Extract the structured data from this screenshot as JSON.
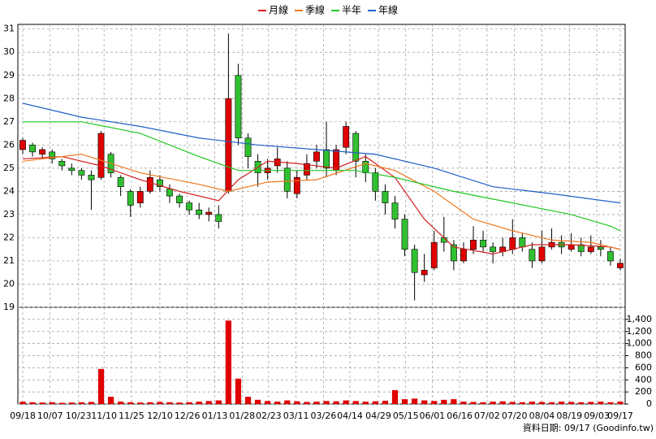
{
  "chart_data": {
    "type": "candlestick",
    "footer": "資料日期: 09/17 (Goodinfo.tw)",
    "xlim": [
      -0.5,
      61.5
    ],
    "xticks": [
      {
        "value": 0,
        "label": "09/18"
      },
      {
        "value": 2.8,
        "label": "10/07"
      },
      {
        "value": 5.7,
        "label": "10/23"
      },
      {
        "value": 8.3,
        "label": "11/10"
      },
      {
        "value": 11.1,
        "label": "11/25"
      },
      {
        "value": 14.0,
        "label": "12/10"
      },
      {
        "value": 16.8,
        "label": "12/26"
      },
      {
        "value": 19.6,
        "label": "01/13"
      },
      {
        "value": 22.4,
        "label": "01/28"
      },
      {
        "value": 25.1,
        "label": "02/23"
      },
      {
        "value": 27.9,
        "label": "03/11"
      },
      {
        "value": 30.7,
        "label": "03/26"
      },
      {
        "value": 33.4,
        "label": "04/14"
      },
      {
        "value": 36.3,
        "label": "04/29"
      },
      {
        "value": 39.1,
        "label": "05/15"
      },
      {
        "value": 41.8,
        "label": "06/01"
      },
      {
        "value": 44.6,
        "label": "06/16"
      },
      {
        "value": 47.4,
        "label": "07/02"
      },
      {
        "value": 50.2,
        "label": "07/20"
      },
      {
        "value": 53.0,
        "label": "08/04"
      },
      {
        "value": 55.8,
        "label": "08/19"
      },
      {
        "value": 58.6,
        "label": "09/03"
      },
      {
        "value": 61,
        "label": "09/17"
      }
    ],
    "ylim": [
      19,
      31.2
    ],
    "yticks": [
      19,
      20,
      21,
      22,
      23,
      24,
      25,
      26,
      27,
      28,
      29,
      30,
      31
    ],
    "y2lim": [
      0,
      1600
    ],
    "y2ticks": [
      0,
      {
        "value": 200,
        "label": "200"
      },
      {
        "value": 400,
        "label": "400"
      },
      {
        "value": 600,
        "label": "600"
      },
      {
        "value": 800,
        "label": "800"
      },
      {
        "value": 1000,
        "label": "1,000"
      },
      {
        "value": 1200,
        "label": "1,200"
      },
      {
        "value": 1400,
        "label": "1,400"
      }
    ],
    "grid": true,
    "up_color": "#e00000",
    "down_color": "#30c030",
    "volume_color": "#e00000",
    "open": [
      25.8,
      26.0,
      25.6,
      25.7,
      25.3,
      25.0,
      24.9,
      24.7,
      24.6,
      25.6,
      24.6,
      24.0,
      23.5,
      24.0,
      24.5,
      24.1,
      23.8,
      23.5,
      23.2,
      23.0,
      23.0,
      24.0,
      29.0,
      26.3,
      25.3,
      24.8,
      25.1,
      25.0,
      23.9,
      24.7,
      25.3,
      25.8,
      24.9,
      25.9,
      26.5,
      25.3,
      24.8,
      24.0,
      23.5,
      22.8,
      21.5,
      20.4,
      20.7,
      22.0,
      21.7,
      21.0,
      21.5,
      21.9,
      21.6,
      21.4,
      21.5,
      22.0,
      21.5,
      21.0,
      21.6,
      21.8,
      21.5,
      21.7,
      21.4,
      21.6,
      21.4,
      20.7
    ],
    "high": [
      26.3,
      26.1,
      25.9,
      25.8,
      25.4,
      25.2,
      25.0,
      24.9,
      26.6,
      25.7,
      24.7,
      24.1,
      24.2,
      24.9,
      24.7,
      24.3,
      23.9,
      23.6,
      23.5,
      23.3,
      23.4,
      30.8,
      29.5,
      26.5,
      25.6,
      25.4,
      25.9,
      25.3,
      24.9,
      25.6,
      26.0,
      27.0,
      26.0,
      27.0,
      26.6,
      25.6,
      25.0,
      24.3,
      23.8,
      23.0,
      21.7,
      21.3,
      22.3,
      22.9,
      21.9,
      21.8,
      22.5,
      22.3,
      21.8,
      22.0,
      22.8,
      22.2,
      21.8,
      22.3,
      22.4,
      22.1,
      22.2,
      22.0,
      22.1,
      21.9,
      21.6,
      21.1
    ],
    "low": [
      25.6,
      25.5,
      25.4,
      25.2,
      24.9,
      24.7,
      24.5,
      23.2,
      24.5,
      24.6,
      23.8,
      22.9,
      23.3,
      23.9,
      24.0,
      23.5,
      23.3,
      23.0,
      22.8,
      22.7,
      22.4,
      23.9,
      26.0,
      25.0,
      24.2,
      24.5,
      24.8,
      23.7,
      23.7,
      24.5,
      25.0,
      24.6,
      24.7,
      25.6,
      24.6,
      24.4,
      23.6,
      23.0,
      22.4,
      21.2,
      19.3,
      20.1,
      20.6,
      21.4,
      20.6,
      20.9,
      21.3,
      21.4,
      20.9,
      21.2,
      21.3,
      21.4,
      20.7,
      20.9,
      21.5,
      21.3,
      21.4,
      21.2,
      21.3,
      21.2,
      20.8,
      20.6
    ],
    "close": [
      26.2,
      25.7,
      25.8,
      25.4,
      25.1,
      24.9,
      24.7,
      24.5,
      26.5,
      24.8,
      24.2,
      23.4,
      24.0,
      24.6,
      24.2,
      23.8,
      23.5,
      23.2,
      23.0,
      23.1,
      22.7,
      28.0,
      26.3,
      25.5,
      24.8,
      25.0,
      25.4,
      24.0,
      24.6,
      25.2,
      25.7,
      25.0,
      25.8,
      26.8,
      25.3,
      24.8,
      24.0,
      23.5,
      22.8,
      21.5,
      20.5,
      20.6,
      21.8,
      21.8,
      21.0,
      21.5,
      21.9,
      21.6,
      21.4,
      21.6,
      22.0,
      21.6,
      21.0,
      21.6,
      21.8,
      21.6,
      21.7,
      21.4,
      21.6,
      21.5,
      21.0,
      20.9
    ],
    "volume": [
      40,
      30,
      25,
      30,
      20,
      25,
      30,
      35,
      580,
      120,
      40,
      30,
      25,
      30,
      35,
      30,
      25,
      30,
      40,
      50,
      60,
      1380,
      420,
      120,
      70,
      50,
      40,
      60,
      45,
      35,
      40,
      50,
      45,
      60,
      50,
      40,
      45,
      55,
      230,
      80,
      90,
      60,
      50,
      70,
      80,
      40,
      35,
      30,
      40,
      45,
      35,
      30,
      40,
      35,
      30,
      40,
      35,
      30,
      35,
      40,
      30,
      40
    ],
    "series": [
      {
        "name": "月線",
        "color": "#d42020",
        "x": [
          0,
          4,
          8,
          12,
          16,
          20,
          22,
          25,
          28,
          32,
          35,
          38,
          41,
          44,
          48,
          52,
          56,
          60,
          61
        ],
        "values": [
          25.4,
          25.5,
          25.1,
          24.5,
          24.0,
          23.6,
          24.5,
          25.3,
          25.2,
          25.0,
          25.5,
          24.6,
          22.8,
          21.6,
          21.3,
          21.7,
          21.7,
          21.6,
          21.5
        ]
      },
      {
        "name": "季線",
        "color": "#f07820",
        "x": [
          0,
          6,
          12,
          18,
          21,
          25,
          30,
          35,
          38,
          42,
          46,
          50,
          54,
          58,
          61
        ],
        "values": [
          25.3,
          25.6,
          24.8,
          24.3,
          24.0,
          24.4,
          24.5,
          25.2,
          24.9,
          24.0,
          22.8,
          22.3,
          21.9,
          21.8,
          21.5
        ]
      },
      {
        "name": "半年",
        "color": "#20c820",
        "x": [
          0,
          6,
          12,
          18,
          22,
          28,
          34,
          38,
          44,
          50,
          56,
          60,
          61
        ],
        "values": [
          27.0,
          27.0,
          26.5,
          25.5,
          24.9,
          24.9,
          24.9,
          24.6,
          24.0,
          23.5,
          23.0,
          22.5,
          22.3
        ]
      },
      {
        "name": "年線",
        "color": "#1f5fc8",
        "x": [
          0,
          6,
          12,
          18,
          24,
          30,
          36,
          42,
          48,
          54,
          61
        ],
        "values": [
          27.8,
          27.2,
          26.8,
          26.3,
          26.0,
          25.8,
          25.6,
          25.0,
          24.2,
          23.9,
          23.5
        ]
      }
    ]
  }
}
